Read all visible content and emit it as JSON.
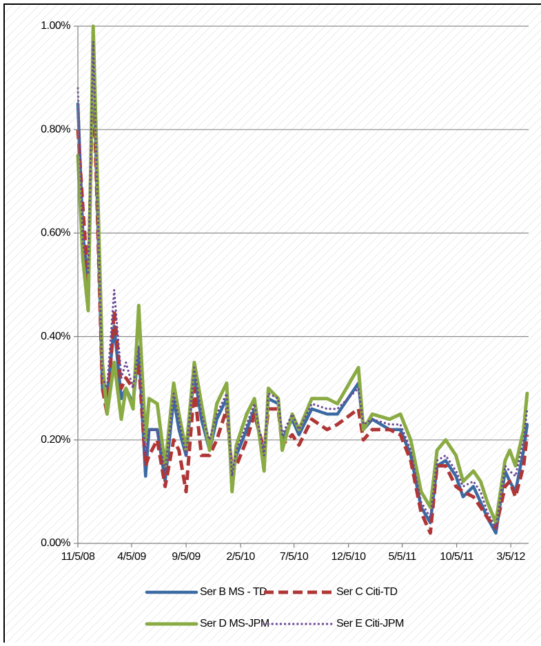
{
  "chart_data": {
    "type": "line",
    "x": [
      "11/5/08",
      "11/19/08",
      "12/4/08",
      "12/18/08",
      "1/13/09",
      "1/26/09",
      "2/15/09",
      "3/7/09",
      "3/20/09",
      "4/9/09",
      "4/25/09",
      "5/14/09",
      "5/24/09",
      "6/16/09",
      "7/8/09",
      "8/1/09",
      "8/16/09",
      "9/5/09",
      "9/28/09",
      "10/18/09",
      "11/10/09",
      "11/30/09",
      "12/28/09",
      "1/12/10",
      "1/24/10",
      "2/22/10",
      "3/16/10",
      "4/12/10",
      "4/24/10",
      "5/22/10",
      "6/2/10",
      "6/30/10",
      "7/19/10",
      "8/24/10",
      "10/6/10",
      "11/4/10",
      "1/2/11",
      "1/16/11",
      "2/10/11",
      "3/31/11",
      "4/30/11",
      "5/29/11",
      "6/27/11",
      "7/23/11",
      "8/11/11",
      "9/4/11",
      "10/3/11",
      "10/23/11",
      "11/21/11",
      "12/11/11",
      "12/30/11",
      "1/23/12",
      "2/18/12",
      "3/2/12",
      "3/18/12",
      "4/10/12",
      "4/20/12"
    ],
    "series": [
      {
        "name": "Ser B MS - TD",
        "color": "#3b6aa3",
        "style": "solid",
        "values": [
          0.85,
          0.6,
          0.5,
          0.95,
          0.3,
          0.28,
          0.42,
          0.28,
          0.3,
          0.27,
          0.38,
          0.13,
          0.22,
          0.22,
          0.12,
          0.28,
          0.22,
          0.17,
          0.33,
          0.24,
          0.18,
          0.24,
          0.28,
          0.13,
          0.17,
          0.22,
          0.26,
          0.16,
          0.28,
          0.27,
          0.2,
          0.24,
          0.21,
          0.26,
          0.25,
          0.25,
          0.31,
          0.22,
          0.24,
          0.22,
          0.22,
          0.17,
          0.07,
          0.04,
          0.15,
          0.16,
          0.13,
          0.09,
          0.11,
          0.08,
          0.05,
          0.02,
          0.14,
          0.12,
          0.1,
          0.18,
          0.23
        ]
      },
      {
        "name": "Ser C Citi-TD",
        "color": "#b03636",
        "style": "dashed",
        "values": [
          0.8,
          0.65,
          0.5,
          0.92,
          0.3,
          0.25,
          0.45,
          0.3,
          0.32,
          0.3,
          0.35,
          0.15,
          0.17,
          0.2,
          0.11,
          0.2,
          0.18,
          0.1,
          0.3,
          0.17,
          0.17,
          0.2,
          0.26,
          0.14,
          0.15,
          0.2,
          0.25,
          0.18,
          0.26,
          0.26,
          0.19,
          0.21,
          0.19,
          0.24,
          0.22,
          0.23,
          0.26,
          0.2,
          0.22,
          0.22,
          0.21,
          0.16,
          0.06,
          0.02,
          0.15,
          0.15,
          0.11,
          0.1,
          0.09,
          0.07,
          0.05,
          0.03,
          0.11,
          0.12,
          0.09,
          0.15,
          0.21
        ]
      },
      {
        "name": "Ser D MS-JPM",
        "color": "#8aab44",
        "style": "solid",
        "values": [
          0.75,
          0.55,
          0.45,
          1.0,
          0.35,
          0.25,
          0.35,
          0.24,
          0.3,
          0.26,
          0.46,
          0.2,
          0.28,
          0.27,
          0.15,
          0.31,
          0.25,
          0.18,
          0.35,
          0.27,
          0.18,
          0.27,
          0.31,
          0.1,
          0.19,
          0.25,
          0.28,
          0.14,
          0.3,
          0.28,
          0.18,
          0.25,
          0.22,
          0.28,
          0.28,
          0.27,
          0.34,
          0.22,
          0.25,
          0.24,
          0.25,
          0.2,
          0.1,
          0.07,
          0.18,
          0.2,
          0.17,
          0.12,
          0.14,
          0.12,
          0.08,
          0.04,
          0.16,
          0.18,
          0.15,
          0.22,
          0.29
        ]
      },
      {
        "name": "Ser E Citi-JPM",
        "color": "#6b4a94",
        "style": "dotted",
        "values": [
          0.88,
          0.58,
          0.52,
          0.97,
          0.32,
          0.3,
          0.49,
          0.32,
          0.35,
          0.3,
          0.38,
          0.17,
          0.22,
          0.22,
          0.14,
          0.29,
          0.24,
          0.17,
          0.34,
          0.25,
          0.2,
          0.25,
          0.29,
          0.13,
          0.18,
          0.23,
          0.27,
          0.17,
          0.29,
          0.28,
          0.21,
          0.25,
          0.22,
          0.27,
          0.26,
          0.26,
          0.3,
          0.23,
          0.24,
          0.23,
          0.23,
          0.18,
          0.08,
          0.05,
          0.16,
          0.17,
          0.14,
          0.11,
          0.12,
          0.1,
          0.06,
          0.03,
          0.15,
          0.14,
          0.13,
          0.2,
          0.26
        ]
      }
    ],
    "xlim": [
      "11/5/08",
      "4/24/12"
    ],
    "xticks": [
      "11/5/08",
      "4/5/09",
      "9/5/09",
      "2/5/10",
      "7/5/10",
      "12/5/10",
      "5/5/11",
      "10/5/11",
      "3/5/12"
    ],
    "ylim": [
      0,
      1
    ],
    "yticks": [
      {
        "value": 0,
        "label": "0.00%"
      },
      {
        "value": 0.2,
        "label": "0.20%"
      },
      {
        "value": 0.4,
        "label": "0.40%"
      },
      {
        "value": 0.6,
        "label": "0.60%"
      },
      {
        "value": 0.8,
        "label": "0.80%"
      },
      {
        "value": 1,
        "label": "1.00%"
      }
    ],
    "grid": true,
    "legend": "bottom"
  }
}
